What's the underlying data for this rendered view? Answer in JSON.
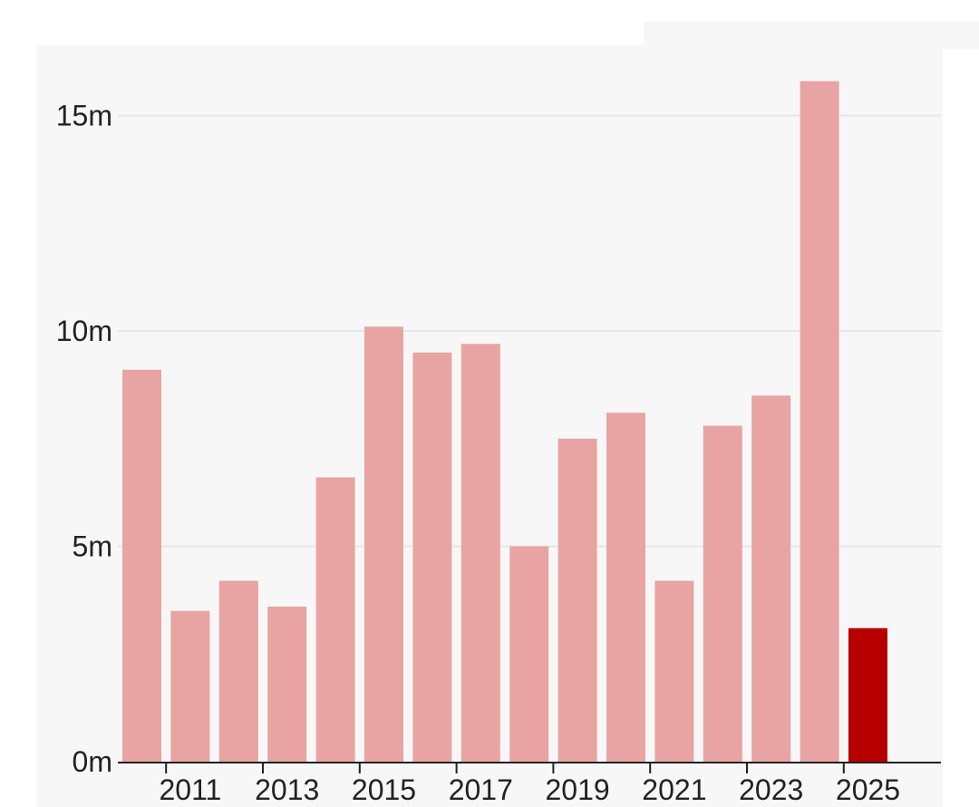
{
  "colors": {
    "panel_background": "#f7f7f7",
    "bar_past": "#e8a3a3",
    "bar_current": "#b80000",
    "gridline": "#e6e6e6",
    "axis": "#222222"
  },
  "chart_data": {
    "type": "bar",
    "categories": [
      "2010",
      "2011",
      "2012",
      "2013",
      "2014",
      "2015",
      "2016",
      "2017",
      "2018",
      "2019",
      "2020",
      "2021",
      "2022",
      "2023",
      "2024",
      "2025"
    ],
    "values": [
      9.1,
      3.5,
      4.2,
      3.6,
      6.6,
      10.1,
      9.5,
      9.7,
      5.0,
      7.5,
      8.1,
      4.2,
      7.8,
      8.5,
      15.8,
      3.1
    ],
    "highlight_category": "2025",
    "x_tick_labels": [
      "2011",
      "2013",
      "2015",
      "2017",
      "2019",
      "2021",
      "2023",
      "2025"
    ],
    "y_ticks": [
      {
        "value": 0,
        "label": "0m"
      },
      {
        "value": 5,
        "label": "5m"
      },
      {
        "value": 10,
        "label": "10m"
      },
      {
        "value": 15,
        "label": "15m"
      }
    ],
    "ylim": [
      0,
      16
    ],
    "grid": true,
    "legend": "none"
  }
}
